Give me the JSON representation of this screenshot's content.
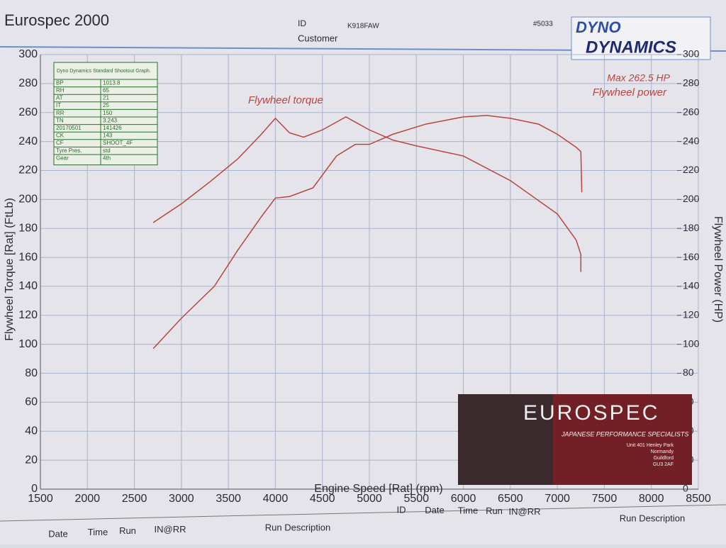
{
  "header": {
    "title": "Eurospec 2000",
    "id_label": "ID",
    "id_value": "K918FAW",
    "customer_label": "Customer",
    "sheet_no": "#5033"
  },
  "logo": {
    "line1": "DYNO",
    "line2": "DYNAMICS"
  },
  "info_table": {
    "title": "Dyno Dynamics Standard Shootout Graph.",
    "rows": [
      [
        "BP",
        "1013.8"
      ],
      [
        "RH",
        "65"
      ],
      [
        "AT",
        "21"
      ],
      [
        "IT",
        "25"
      ],
      [
        "RR",
        "150"
      ],
      [
        "TN",
        "3.243"
      ],
      [
        "20170501",
        "141426"
      ],
      [
        "CK",
        "143"
      ],
      [
        "CF",
        "SHOOT_4F"
      ],
      [
        "Tyre Pres.",
        "std"
      ],
      [
        "Gear",
        "4th"
      ]
    ]
  },
  "advert": {
    "brand": "EUROSPEC",
    "tagline": "JAPANESE PERFORMANCE SPECIALISTS",
    "address": [
      "Unit 401 Henley Park",
      "Normandy",
      "Guildford",
      "GU3 2AF"
    ]
  },
  "run_tables": {
    "left": [
      "Date",
      "Time",
      "Run",
      "IN@RR",
      "Run Description"
    ],
    "right": [
      "ID",
      "Date",
      "Time",
      "Run",
      "IN@RR",
      "Run Description"
    ]
  },
  "chart_data": {
    "type": "line",
    "x_label": "Engine Speed [Rat] (rpm)",
    "y_label": "Flywheel Torque [Rat] (FtLb)",
    "y2_label": "Flywheel Power (HP)",
    "annotation": "Max 262.5 HP",
    "xlim": [
      1500,
      8500
    ],
    "xticks": [
      1500,
      2000,
      2500,
      3000,
      3500,
      4000,
      4500,
      5000,
      5500,
      6000,
      6500,
      7000,
      7500,
      8000,
      8500
    ],
    "ylim": [
      0,
      300
    ],
    "yticks": [
      0,
      20,
      40,
      60,
      80,
      100,
      120,
      140,
      160,
      180,
      200,
      220,
      240,
      260,
      280,
      300
    ],
    "y2lim": [
      0,
      300
    ],
    "y2ticks": [
      0,
      20,
      40,
      60,
      80,
      100,
      120,
      140,
      160,
      180,
      200,
      220,
      240,
      260,
      280,
      300
    ],
    "grid": true,
    "series": [
      {
        "name": "Flywheel torque",
        "color": "#b8453f",
        "x": [
          2700,
          3000,
          3300,
          3600,
          3850,
          4000,
          4150,
          4300,
          4500,
          4750,
          5000,
          5250,
          5500,
          6000,
          6500,
          7000,
          7200,
          7250,
          7250
        ],
        "values": [
          184,
          197,
          212,
          228,
          245,
          256,
          246,
          243,
          248,
          257,
          248,
          241,
          237,
          230,
          213,
          190,
          172,
          162,
          150
        ]
      },
      {
        "name": "Flywheel power",
        "color": "#b8453f",
        "axis": "y2",
        "x": [
          2700,
          3000,
          3350,
          3600,
          3850,
          4000,
          4150,
          4400,
          4650,
          4850,
          5000,
          5250,
          5600,
          6000,
          6250,
          6500,
          6800,
          7000,
          7200,
          7250,
          7260
        ],
        "values": [
          97,
          118,
          140,
          165,
          188,
          201,
          202,
          208,
          230,
          238,
          238,
          245,
          252,
          257,
          258,
          256,
          252,
          245,
          236,
          233,
          205
        ]
      }
    ]
  }
}
